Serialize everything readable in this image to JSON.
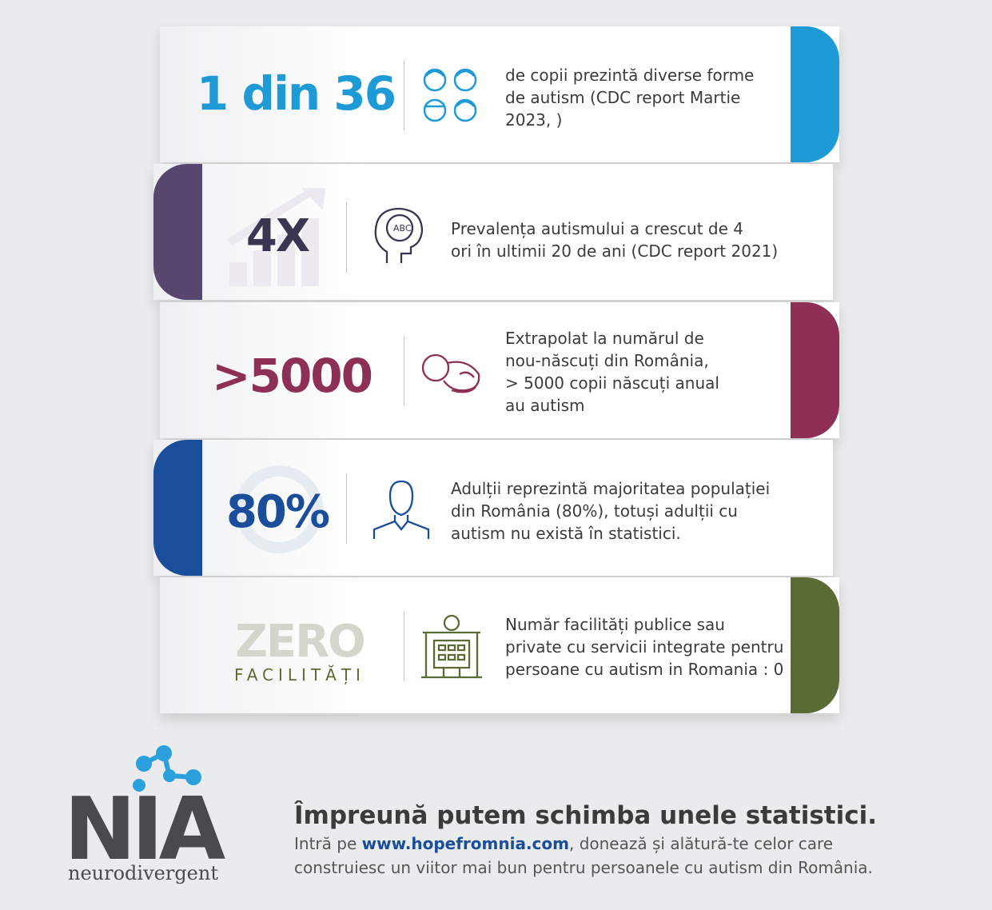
{
  "cards": [
    {
      "stat": "1 din 36",
      "lines": [
        "de copii prezintă diverse forme",
        "de autism (CDC report Martie",
        "2023, )"
      ]
    },
    {
      "stat": "4X",
      "lines": [
        "Prevalența autismului a crescut de 4",
        "ori în ultimii 20 de ani (CDC report 2021)"
      ]
    },
    {
      "stat": ">5000",
      "lines": [
        "Extrapolat la numărul de",
        "nou-născuți din România,",
        "> 5000 copii născuți anual",
        "au autism"
      ]
    },
    {
      "stat": "80%",
      "lines": [
        "Adulții reprezintă majoritatea populației",
        "din România (80%), totuși adulții cu",
        "autism nu există în statistici."
      ]
    },
    {
      "stat": "ZERO",
      "stat_sub": "FACILITĂȚI",
      "lines": [
        "Număr facilități  publice sau",
        "private cu servicii integrate pentru",
        "persoane cu autism in Romania : 0"
      ]
    }
  ],
  "footer": {
    "logo": "NIA",
    "logo_sub": "neurodivergent",
    "headline": "Împreună putem schimba unele statistici.",
    "line1_before": "Intră pe ",
    "link": "www.hopefromnia.com",
    "line1_after": ", donează și alătură-te celor care",
    "line2": "construiesc un viitor mai bun pentru persoanele cu autism din România."
  }
}
